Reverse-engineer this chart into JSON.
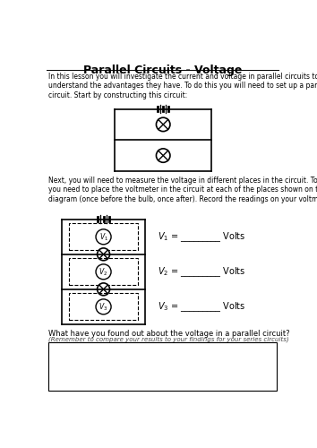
{
  "title": "Parallel Circuits - Voltage",
  "intro_text": "In this lesson you will investigate the current and voltage in parallel circuits to\nunderstand the advantages they have. To do this you will need to set up a parallel\ncircuit. Start by constructing this circuit:",
  "next_text": "Next, you will need to measure the voltage in different places in the circuit. To do this,\nyou need to place the voltmeter in the circuit at each of the places shown on this\ndiagram (once before the bulb, once after). Record the readings on your voltmeter.",
  "question_text": "What have you found out about the voltage in a parallel circuit?",
  "question_subtext": "(Remember to compare your results to your findings for your series circuits)",
  "bg_color": "#ffffff",
  "text_color": "#000000"
}
